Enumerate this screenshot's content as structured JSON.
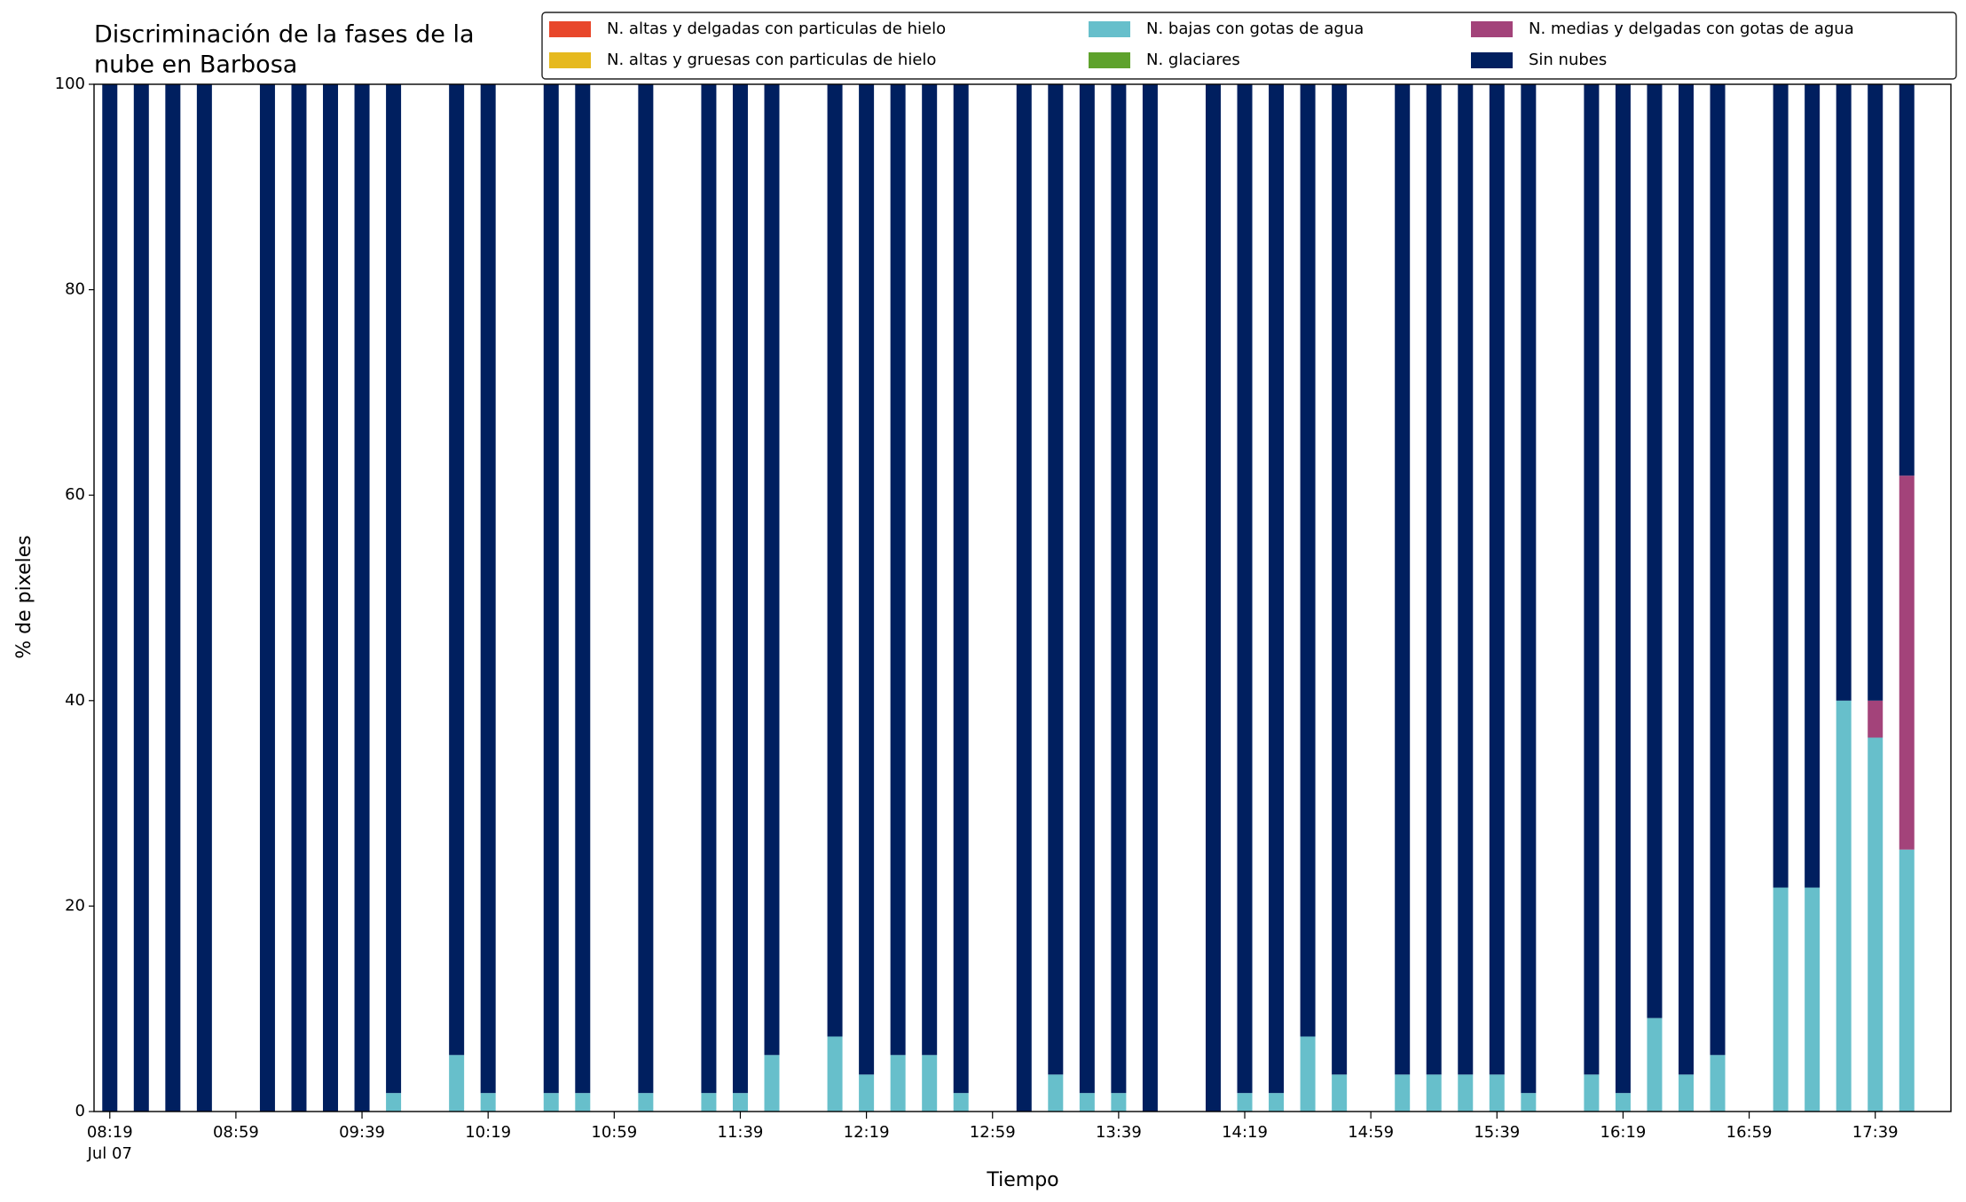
{
  "chart_data": {
    "type": "stacked_bar",
    "title": [
      "Discriminación de la fases de la",
      "nube en Barbosa"
    ],
    "xlabel": "Tiempo",
    "ylabel": "% de pixeles",
    "date": "Jul 07",
    "x": [
      "08:19",
      "08:29",
      "08:39",
      "08:49",
      "09:09",
      "09:19",
      "09:29",
      "09:39",
      "09:49",
      "10:09",
      "10:19",
      "10:39",
      "10:49",
      "11:09",
      "11:29",
      "11:39",
      "11:49",
      "12:09",
      "12:19",
      "12:29",
      "12:39",
      "12:49",
      "13:09",
      "13:19",
      "13:29",
      "13:39",
      "13:49",
      "14:09",
      "14:19",
      "14:29",
      "14:39",
      "14:49",
      "15:09",
      "15:19",
      "15:29",
      "15:39",
      "15:49",
      "16:09",
      "16:19",
      "16:29",
      "16:39",
      "16:49",
      "17:09",
      "17:19",
      "17:29",
      "17:39",
      "17:49"
    ],
    "xlim": [
      "08:14",
      "18:03"
    ],
    "xticks": [
      "08:19",
      "08:59",
      "09:39",
      "10:19",
      "10:59",
      "11:39",
      "12:19",
      "12:59",
      "13:39",
      "14:19",
      "14:59",
      "15:39",
      "16:19",
      "16:59",
      "17:39"
    ],
    "ylim": [
      0,
      100
    ],
    "yticks": [
      0,
      20,
      40,
      60,
      80,
      100
    ],
    "legend": "upper right",
    "series": [
      {
        "name": "N. altas y delgadas con particulas de hielo",
        "color": "#e8472b",
        "values": [
          0,
          0,
          0,
          0,
          0,
          0,
          0,
          0,
          0,
          0,
          0,
          0,
          0,
          0,
          0,
          0,
          0,
          0,
          0,
          0,
          0,
          0,
          0,
          0,
          0,
          0,
          0,
          0,
          0,
          0,
          0,
          0,
          0,
          0,
          0,
          0,
          0,
          0,
          0,
          0,
          0,
          0,
          0,
          0,
          0,
          0,
          0
        ]
      },
      {
        "name": "N. altas y gruesas con particulas de hielo",
        "color": "#e6b91e",
        "values": [
          0,
          0,
          0,
          0,
          0,
          0,
          0,
          0,
          0,
          0,
          0,
          0,
          0,
          0,
          0,
          0,
          0,
          0,
          0,
          0,
          0,
          0,
          0,
          0,
          0,
          0,
          0,
          0,
          0,
          0,
          0,
          0,
          0,
          0,
          0,
          0,
          0,
          0,
          0,
          0,
          0,
          0,
          0,
          0,
          0,
          0,
          0
        ]
      },
      {
        "name": "N. bajas con gotas de agua",
        "color": "#67bfcb",
        "values": [
          0,
          0,
          0,
          0,
          0,
          0,
          0,
          0,
          1.8,
          5.5,
          1.8,
          1.8,
          1.8,
          1.8,
          1.8,
          1.8,
          5.5,
          7.3,
          3.6,
          5.5,
          5.5,
          1.8,
          0,
          3.6,
          1.8,
          1.8,
          0,
          0,
          1.8,
          1.8,
          7.3,
          3.6,
          3.6,
          3.6,
          3.6,
          3.6,
          1.8,
          3.6,
          1.8,
          9.1,
          3.6,
          5.5,
          21.8,
          21.8,
          40,
          36.4,
          25.5
        ]
      },
      {
        "name": "N. glaciares",
        "color": "#5ea22c",
        "values": [
          0,
          0,
          0,
          0,
          0,
          0,
          0,
          0,
          0,
          0,
          0,
          0,
          0,
          0,
          0,
          0,
          0,
          0,
          0,
          0,
          0,
          0,
          0,
          0,
          0,
          0,
          0,
          0,
          0,
          0,
          0,
          0,
          0,
          0,
          0,
          0,
          0,
          0,
          0,
          0,
          0,
          0,
          0,
          0,
          0,
          0,
          0
        ]
      },
      {
        "name": "N. medias y delgadas con gotas de agua",
        "color": "#a3437a",
        "values": [
          0,
          0,
          0,
          0,
          0,
          0,
          0,
          0,
          0,
          0,
          0,
          0,
          0,
          0,
          0,
          0,
          0,
          0,
          0,
          0,
          0,
          0,
          0,
          0,
          0,
          0,
          0,
          0,
          0,
          0,
          0,
          0,
          0,
          0,
          0,
          0,
          0,
          0,
          0,
          0,
          0,
          0,
          0,
          0,
          0,
          3.6,
          36.4
        ]
      },
      {
        "name": "Sin nubes",
        "color": "#001f5f",
        "values": [
          100,
          100,
          100,
          100,
          100,
          100,
          100,
          100,
          98.2,
          94.5,
          98.2,
          98.2,
          98.2,
          98.2,
          98.2,
          98.2,
          94.5,
          92.7,
          96.4,
          94.5,
          94.5,
          98.2,
          100,
          96.4,
          98.2,
          98.2,
          100,
          100,
          98.2,
          98.2,
          92.7,
          96.4,
          96.4,
          96.4,
          96.4,
          96.4,
          98.2,
          96.4,
          98.2,
          90.9,
          96.4,
          94.5,
          78.2,
          78.2,
          60,
          60,
          38.1
        ]
      }
    ]
  }
}
